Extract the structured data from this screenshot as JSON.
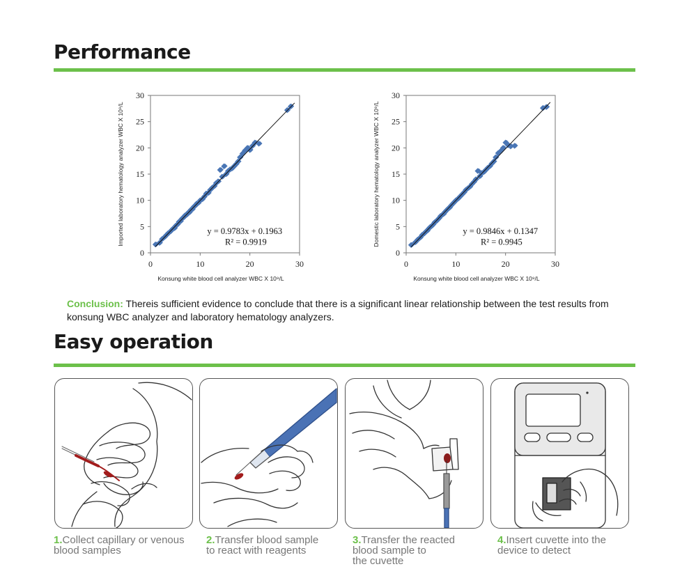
{
  "sections": {
    "performance_title": "Performance",
    "operation_title": "Easy operation"
  },
  "conclusion": {
    "lead": "Conclusion:",
    "text": " Thereis sufficient evidence to conclude that there is a significant linear relationship between the test results from konsung WBC analyzer and laboratory hematology analyzers."
  },
  "colors": {
    "accent_green": "#6cc04a",
    "marker_blue": "#4a76b5",
    "tool_blue": "#4a72b5"
  },
  "chart_data": [
    {
      "type": "scatter",
      "xlabel": "Konsung white blood cell analyzer WBC X 10⁹/L",
      "ylabel": "Imported laboratory hematology analyzer   WBC X 10⁹/L",
      "xlim": [
        0,
        30
      ],
      "ylim": [
        0,
        30
      ],
      "xticks": [
        "0",
        "10",
        "20",
        "30"
      ],
      "yticks": [
        "0",
        "5",
        "10",
        "15",
        "20",
        "25",
        "30"
      ],
      "equation": "y = 0.9783x + 0.1963",
      "r2": "R² = 0.9919",
      "fit": {
        "slope": 0.9783,
        "intercept": 0.1963,
        "x_range": [
          1,
          29
        ]
      },
      "x": [
        1.0,
        1.8,
        2.3,
        2.8,
        3.2,
        3.5,
        3.9,
        4.2,
        4.5,
        4.8,
        5.1,
        5.4,
        5.7,
        6.0,
        6.3,
        6.6,
        6.9,
        7.2,
        7.5,
        7.8,
        8.1,
        8.4,
        8.7,
        9.0,
        9.3,
        9.6,
        10.0,
        10.4,
        10.8,
        11.2,
        11.6,
        12.0,
        12.4,
        12.8,
        13.2,
        13.6,
        14.0,
        14.4,
        14.8,
        15.2,
        15.6,
        16.0,
        16.4,
        16.8,
        17.2,
        17.6,
        18.0,
        18.5,
        19.0,
        19.5,
        20.0,
        20.5,
        21.0,
        21.8,
        27.5,
        28.2
      ],
      "y": [
        1.6,
        1.9,
        2.6,
        3.0,
        3.4,
        3.7,
        4.0,
        4.3,
        4.6,
        4.7,
        5.2,
        5.4,
        5.9,
        6.0,
        6.5,
        6.7,
        7.1,
        7.2,
        7.6,
        7.7,
        8.2,
        8.3,
        8.8,
        9.0,
        9.4,
        9.5,
        10.0,
        10.2,
        10.7,
        11.3,
        11.4,
        12.0,
        12.4,
        12.7,
        13.3,
        13.6,
        15.8,
        14.5,
        16.5,
        15.0,
        15.6,
        15.9,
        16.1,
        16.5,
        16.9,
        17.4,
        18.2,
        18.9,
        19.5,
        20.0,
        19.6,
        20.4,
        21.0,
        20.8,
        27.2,
        27.9
      ]
    },
    {
      "type": "scatter",
      "xlabel": "Konsung white blood cell analyzer WBC X 10⁹/L",
      "ylabel": "Domestic laboratory hematology analyzer   WBC X 10⁹/L",
      "xlim": [
        0,
        30
      ],
      "ylim": [
        0,
        30
      ],
      "xticks": [
        "0",
        "10",
        "20",
        "30"
      ],
      "yticks": [
        "0",
        "5",
        "10",
        "15",
        "20",
        "25",
        "30"
      ],
      "equation": "y = 0.9846x + 0.1347",
      "r2": "R² = 0.9945",
      "fit": {
        "slope": 0.9846,
        "intercept": 0.1347,
        "x_range": [
          1,
          29
        ]
      },
      "x": [
        1.0,
        1.8,
        2.3,
        2.8,
        3.2,
        3.5,
        3.9,
        4.2,
        4.5,
        4.8,
        5.1,
        5.4,
        5.7,
        6.0,
        6.3,
        6.6,
        6.9,
        7.2,
        7.5,
        7.8,
        8.1,
        8.4,
        8.7,
        9.0,
        9.3,
        9.6,
        10.0,
        10.4,
        10.8,
        11.2,
        11.6,
        12.0,
        12.4,
        12.8,
        13.2,
        13.6,
        14.0,
        14.4,
        14.8,
        15.2,
        15.6,
        16.0,
        16.4,
        16.8,
        17.2,
        17.6,
        18.0,
        18.5,
        19.0,
        19.5,
        20.0,
        20.5,
        21.0,
        21.8,
        27.5,
        28.2
      ],
      "y": [
        1.5,
        2.0,
        2.5,
        2.9,
        3.4,
        3.6,
        4.0,
        4.2,
        4.6,
        4.9,
        5.1,
        5.4,
        5.8,
        6.0,
        6.3,
        6.6,
        7.0,
        7.2,
        7.4,
        7.8,
        8.1,
        8.4,
        8.6,
        9.0,
        9.3,
        9.6,
        10.0,
        10.3,
        10.7,
        11.1,
        11.5,
        12.0,
        12.3,
        12.6,
        13.1,
        13.5,
        14.0,
        15.6,
        14.6,
        15.2,
        15.4,
        15.8,
        16.2,
        16.5,
        17.0,
        17.4,
        18.2,
        19.0,
        19.4,
        20.0,
        21.0,
        20.5,
        20.3,
        20.4,
        27.6,
        27.8
      ]
    }
  ],
  "steps": [
    {
      "num": "1.",
      "text": "Collect capillary or venous blood samples",
      "lines": [
        "Collect capillary or venous",
        "blood samples"
      ]
    },
    {
      "num": "2.",
      "text": "Transfer blood sample to react with reagents",
      "lines": [
        "Transfer blood sample",
        "to react with reagents"
      ]
    },
    {
      "num": "3.",
      "text": "Transfer the reacted blood sample to the cuvette",
      "lines": [
        "Transfer the reacted",
        "blood sample to",
        "the cuvette"
      ]
    },
    {
      "num": "4.",
      "text": "Insert cuvette into the device to detect",
      "lines": [
        "Insert cuvette into the",
        "device to detect"
      ]
    }
  ],
  "illustrations": [
    {
      "icon": "hand-collecting-blood-icon"
    },
    {
      "icon": "hand-pipette-transfer-icon"
    },
    {
      "icon": "hand-cuvette-fill-icon"
    },
    {
      "icon": "analyzer-device-insert-icon"
    }
  ]
}
